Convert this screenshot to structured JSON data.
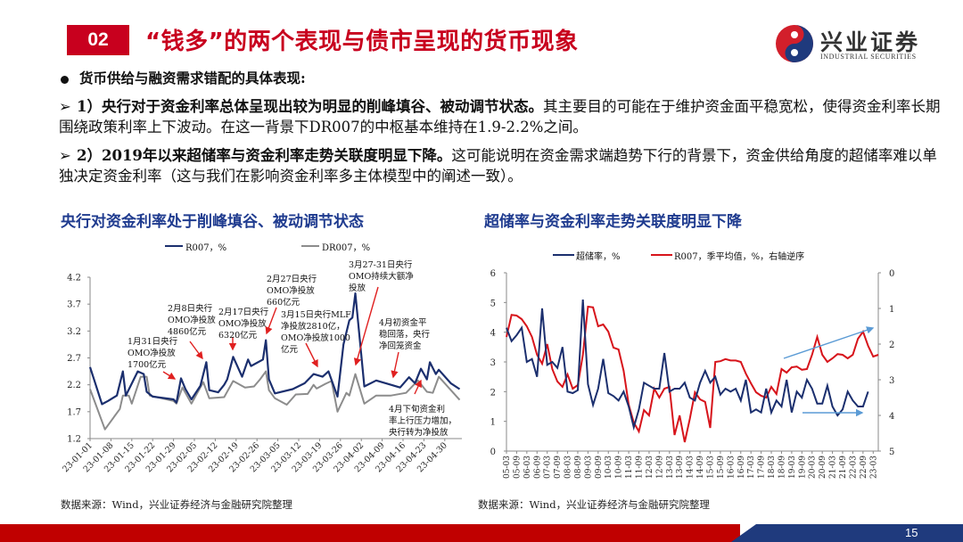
{
  "header": {
    "section_number": "02",
    "title": "“钱多”的两个表现与债市呈现的货币现象",
    "logo_cn": "兴业证券",
    "logo_en": "INDUSTRIAL SECURITIES"
  },
  "bullets": {
    "head": "货币供给与融资需求错配的具体表现:",
    "items": [
      {
        "marker": "➢",
        "bold": "1）央行对于资金利率总体呈现出较为明显的削峰填谷、被动调节状态。",
        "rest": "其主要目的可能在于维护资金面平稳宽松，使得资金利率长期围绕政策利率上下波动。在这一背景下DR007的中枢基本维持在1.9-2.2%之间。"
      },
      {
        "marker": "➢",
        "bold": "2）2019年以来超储率与资金利率走势关联度明显下降。",
        "rest": "这可能说明在资金需求端趋势下行的背景下，资金供给角度的超储率难以单独决定资金利率（这与我们在影响资金利率多主体模型中的阐述一致）。"
      }
    ]
  },
  "colors": {
    "brand_red": "#c8001e",
    "navy": "#1b2f6e",
    "gray": "#8c8c8c",
    "red_line": "#d7141b",
    "arrow_red": "#e02020",
    "arrow_blue": "#5b9bd5"
  },
  "chart_data": [
    {
      "type": "line",
      "title": "央行对资金利率处于削峰填谷、被动调节状态",
      "xlabel": "",
      "ylabel": "",
      "ylim": [
        1.2,
        4.2
      ],
      "yticks": [
        "1.2",
        "1.7",
        "2.2",
        "2.7",
        "3.2",
        "3.7",
        "4.2"
      ],
      "x_unit": "days since 23-01-01",
      "xticks": [
        "23-01-01",
        "23-01-08",
        "23-01-15",
        "23-01-22",
        "23-01-29",
        "23-02-05",
        "23-02-12",
        "23-02-19",
        "23-02-26",
        "23-03-05",
        "23-03-12",
        "23-03-19",
        "23-03-26",
        "23-04-02",
        "23-04-09",
        "23-04-16",
        "23-04-23",
        "23-04-30"
      ],
      "legend": "top",
      "grid": false,
      "series": [
        {
          "name": "R007，%",
          "color": "#1b2f6e",
          "points": [
            [
              0,
              2.53
            ],
            [
              4,
              1.84
            ],
            [
              6,
              1.9
            ],
            [
              9,
              2.0
            ],
            [
              11,
              2.45
            ],
            [
              12,
              2.0
            ],
            [
              16,
              2.45
            ],
            [
              18,
              2.4
            ],
            [
              19,
              2.07
            ],
            [
              21,
              1.98
            ],
            [
              28,
              1.93
            ],
            [
              29,
              1.87
            ],
            [
              30.5,
              2.32
            ],
            [
              32,
              2.12
            ],
            [
              34,
              1.93
            ],
            [
              37,
              2.18
            ],
            [
              39,
              2.62
            ],
            [
              40,
              2.1
            ],
            [
              43,
              2.06
            ],
            [
              45,
              2.2
            ],
            [
              46,
              2.3
            ],
            [
              48,
              2.72
            ],
            [
              51,
              2.35
            ],
            [
              53,
              2.67
            ],
            [
              54,
              2.55
            ],
            [
              58,
              2.67
            ],
            [
              59,
              3.03
            ],
            [
              60,
              2.3
            ],
            [
              62,
              2.04
            ],
            [
              68,
              2.12
            ],
            [
              72,
              2.23
            ],
            [
              75,
              2.4
            ],
            [
              78,
              2.35
            ],
            [
              80,
              2.45
            ],
            [
              83,
              1.98
            ],
            [
              85,
              2.95
            ],
            [
              87,
              3.4
            ],
            [
              88,
              3.45
            ],
            [
              89,
              3.9
            ],
            [
              92,
              2.17
            ],
            [
              96,
              2.28
            ],
            [
              101,
              2.2
            ],
            [
              104,
              2.15
            ],
            [
              107,
              2.34
            ],
            [
              109,
              2.23
            ],
            [
              111,
              2.5
            ],
            [
              113,
              2.3
            ],
            [
              114,
              2.62
            ],
            [
              116,
              2.4
            ],
            [
              117,
              2.48
            ],
            [
              121,
              2.23
            ],
            [
              124,
              2.12
            ]
          ]
        },
        {
          "name": "DR007，%",
          "color": "#8c8c8c",
          "points": [
            [
              0,
              2.12
            ],
            [
              5,
              1.37
            ],
            [
              8,
              1.6
            ],
            [
              10,
              1.75
            ],
            [
              11,
              2.0
            ],
            [
              13,
              2.0
            ],
            [
              14,
              1.85
            ],
            [
              17,
              2.35
            ],
            [
              19,
              2.35
            ],
            [
              20,
              2.0
            ],
            [
              28,
              1.9
            ],
            [
              29,
              1.85
            ],
            [
              31,
              2.15
            ],
            [
              34,
              1.85
            ],
            [
              38,
              2.25
            ],
            [
              40,
              1.95
            ],
            [
              45,
              1.97
            ],
            [
              48,
              2.27
            ],
            [
              52,
              2.15
            ],
            [
              55,
              2.17
            ],
            [
              57,
              2.3
            ],
            [
              59,
              2.45
            ],
            [
              60,
              2.1
            ],
            [
              62,
              1.95
            ],
            [
              66,
              1.83
            ],
            [
              69,
              2.02
            ],
            [
              73,
              2.03
            ],
            [
              75,
              2.2
            ],
            [
              76,
              2.13
            ],
            [
              79,
              2.22
            ],
            [
              81,
              2.27
            ],
            [
              83,
              1.7
            ],
            [
              86,
              2.05
            ],
            [
              87,
              2.0
            ],
            [
              89,
              2.4
            ],
            [
              92,
              1.85
            ],
            [
              96,
              2.0
            ],
            [
              101,
              2.0
            ],
            [
              106,
              2.05
            ],
            [
              110,
              2.28
            ],
            [
              113,
              2.07
            ],
            [
              115,
              2.05
            ],
            [
              117,
              2.35
            ],
            [
              124,
              1.92
            ]
          ]
        }
      ],
      "annotations": [
        "1月31日央行\nOMO净投放\n1700亿元",
        "2月8日央行\nOMO净投放\n4860亿元",
        "2月17日央行\nOMO净投放\n6320亿元",
        "2月27日央行\nOMO净投放\n660亿元",
        "3月15日央行MLF\n净投放2810亿，\nOMO净投放1000\n亿元",
        "3月27-31日央行\nOMO持续大额净\n投放",
        "4月初资金平\n稳回落，央行\n净回笼资金",
        "4月下旬资金利\n率上行压力增加，\n央行转为净投放"
      ],
      "source": "数据来源：Wind，兴业证券经济与金融研究院整理"
    },
    {
      "type": "line",
      "title": "超储率与资金利率走势关联度明显下降",
      "ylim": [
        0,
        6
      ],
      "yticks": [
        "0",
        "1",
        "2",
        "3",
        "4",
        "5",
        "6"
      ],
      "y2lim": [
        0,
        5
      ],
      "y2_inverted": true,
      "y2ticks": [
        "0",
        "1",
        "2",
        "3",
        "4",
        "5"
      ],
      "xticks": [
        "05-03",
        "05-09",
        "06-03",
        "06-09",
        "07-03",
        "07-09",
        "08-03",
        "08-09",
        "09-03",
        "09-09",
        "10-03",
        "10-09",
        "11-03",
        "11-09",
        "12-03",
        "12-09",
        "13-03",
        "13-09",
        "14-03",
        "14-09",
        "15-03",
        "15-09",
        "16-03",
        "16-09",
        "17-03",
        "17-09",
        "18-03",
        "18-09",
        "19-03",
        "19-09",
        "20-03",
        "20-09",
        "21-03",
        "21-09",
        "22-03",
        "22-09",
        "23-03"
      ],
      "legend": "top",
      "grid": false,
      "series": [
        {
          "name": "超储率，%",
          "axis": "left",
          "color": "#1b2f6e",
          "values": [
            4.15,
            3.7,
            3.9,
            4.15,
            3.0,
            3.1,
            2.5,
            4.8,
            2.9,
            3.0,
            2.8,
            3.5,
            2.0,
            1.95,
            2.05,
            5.1,
            2.25,
            1.55,
            2.1,
            3.1,
            1.95,
            1.85,
            1.7,
            2.0,
            1.5,
            0.8,
            1.4,
            2.3,
            2.2,
            2.1,
            2.1,
            3.3,
            2.0,
            2.1,
            2.1,
            2.3,
            1.8,
            1.7,
            2.3,
            2.7,
            2.3,
            2.5,
            1.9,
            2.1,
            2.0,
            2.1,
            1.7,
            2.4,
            1.3,
            1.4,
            1.3,
            2.1,
            1.3,
            1.7,
            1.5,
            2.4,
            1.3,
            2.0,
            1.8,
            2.4,
            2.1,
            1.6,
            1.6,
            2.2,
            1.5,
            1.2,
            1.4,
            2.0,
            1.7,
            1.5,
            1.5,
            2.0
          ]
        },
        {
          "name": "R007，季平均值，%，右轴逆序",
          "axis": "right",
          "color": "#d7141b",
          "values": [
            1.8,
            1.18,
            1.2,
            1.3,
            1.5,
            1.8,
            2.3,
            2.55,
            2.0,
            2.7,
            3.05,
            3.2,
            2.85,
            3.25,
            3.15,
            2.3,
            0.95,
            0.97,
            1.5,
            1.45,
            1.65,
            2.1,
            2.15,
            2.75,
            3.7,
            4.2,
            4.45,
            3.85,
            4.0,
            3.25,
            3.5,
            3.25,
            3.2,
            4.55,
            4.0,
            4.75,
            4.1,
            3.35,
            3.55,
            3.62,
            4.35,
            2.5,
            2.48,
            2.42,
            2.46,
            2.46,
            2.5,
            2.83,
            3.1,
            3.35,
            3.45,
            3.5,
            3.2,
            3.4,
            2.7,
            2.8,
            2.65,
            2.63,
            2.72,
            2.7,
            2.3,
            1.8,
            2.3,
            2.5,
            2.4,
            2.28,
            2.3,
            2.4,
            2.3,
            1.85,
            1.65,
            2.05,
            2.35,
            2.3
          ]
        }
      ],
      "source": "数据来源：Wind，兴业证券经济与金融研究院整理"
    }
  ],
  "footer": {
    "page_number": "15"
  }
}
